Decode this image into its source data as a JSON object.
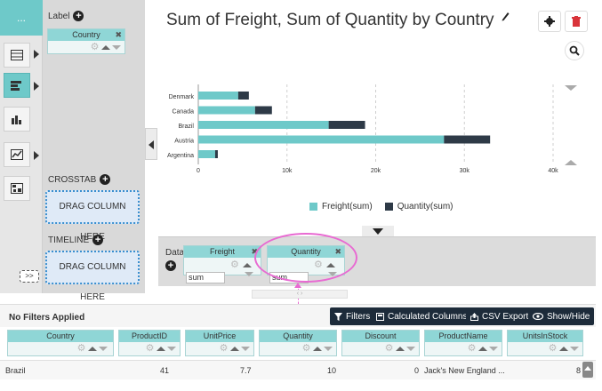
{
  "rail": {
    "top_label": "...",
    "items": [
      {
        "icon": "table-icon"
      },
      {
        "icon": "bar-chart-icon"
      },
      {
        "icon": "column-chart-icon"
      },
      {
        "icon": "line-chart-icon"
      },
      {
        "icon": "map-icon"
      }
    ],
    "expand_label": ">>"
  },
  "field_panel": {
    "label_title": "Label",
    "label_chip": "Country",
    "crosstab_title": "CROSSTAB",
    "crosstab_drop": "DRAG COLUMN HERE",
    "timeline_title": "TIMELINE",
    "timeline_drop": "DRAG COLUMN HERE"
  },
  "chart": {
    "title": "Sum of Freight, Sum of Quantity by Country",
    "settings_icon": "gear-icon",
    "delete_icon": "trash-icon",
    "zoom_icon": "zoom-icon",
    "colors": {
      "freight": "#6ec9c9",
      "quantity": "#2e3a47"
    }
  },
  "chart_data": {
    "type": "bar",
    "orientation": "horizontal",
    "stacked": true,
    "categories": [
      "Denmark",
      "Canada",
      "Brazil",
      "Austria",
      "Argentina"
    ],
    "series": [
      {
        "name": "Freight(sum)",
        "values": [
          4500,
          6400,
          14700,
          27700,
          1900
        ]
      },
      {
        "name": "Quantity(sum)",
        "values": [
          1200,
          1900,
          4100,
          5200,
          300
        ]
      }
    ],
    "x_ticks": [
      "0",
      "10k",
      "20k",
      "30k",
      "40k"
    ],
    "xlim": [
      0,
      40000
    ],
    "grid": true,
    "legend_position": "bottom"
  },
  "databar": {
    "label": "Data",
    "fields": [
      {
        "name": "Freight",
        "agg": "sum"
      },
      {
        "name": "Quantity",
        "agg": "sum"
      }
    ]
  },
  "filter_bar": {
    "status": "No Filters Applied",
    "filters": "Filters",
    "calculated": "Calculated Columns",
    "csv": "CSV Export",
    "showhide": "Show/Hide"
  },
  "grid": {
    "columns": [
      "Country",
      "ProductID",
      "UnitPrice",
      "Quantity",
      "Discount",
      "ProductName",
      "UnitsInStock"
    ],
    "row": {
      "country": "Brazil",
      "productid": "41",
      "unitprice": "7.7",
      "quantity": "10",
      "discount": "0",
      "productname": "Jack's New England ...",
      "unitsinstock": "8"
    }
  }
}
